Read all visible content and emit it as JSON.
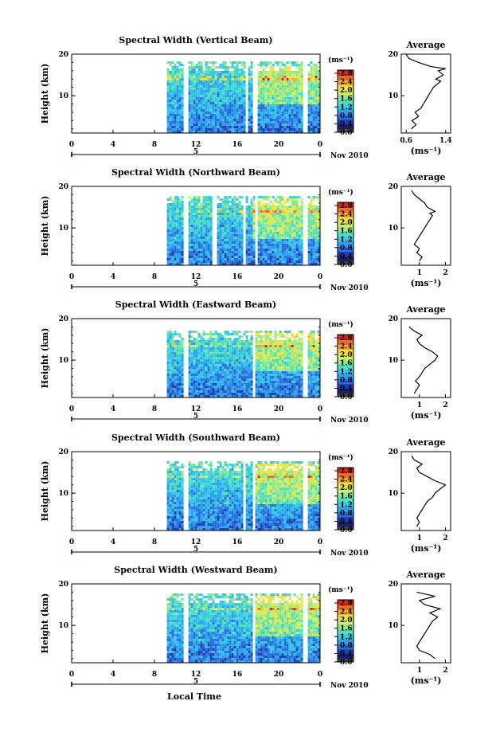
{
  "figure": {
    "xlabel": "Local Time",
    "date_label": "Nov 2010",
    "date_day": "5",
    "colorbar_unit": "(ms⁻¹)",
    "avg_title": "Average",
    "avg_xlabel": "(ms⁻¹)"
  },
  "colormap": [
    "#1a1f6b",
    "#1e3fb0",
    "#2a6ee0",
    "#2fa0f0",
    "#35c6e8",
    "#4fe0c0",
    "#8fe890",
    "#d0ee60",
    "#f6e040",
    "#f9a830",
    "#ef6a24",
    "#d8271c"
  ],
  "chart_data": [
    {
      "type": "heatmap",
      "title": "Spectral Width (Vertical Beam)",
      "xlabel": "",
      "ylabel": "Height (km)",
      "xlim": [
        0,
        24
      ],
      "ylim": [
        1,
        20
      ],
      "xticks": [
        "0",
        "4",
        "8",
        "12",
        "16",
        "20",
        "0"
      ],
      "yticks": [
        "10",
        "20"
      ],
      "colorbar": {
        "unit": "(ms⁻¹)",
        "ticks": [
          "2.8",
          "2.4",
          "2.0",
          "1.6",
          "1.2",
          "0.8",
          "0.4",
          "0.0"
        ]
      },
      "data_start_hour": 9.2,
      "data_gaps_hours": [
        [
          10.8,
          11.2
        ],
        [
          16.8,
          17.0
        ],
        [
          17.4,
          17.8
        ],
        [
          22.2,
          22.7
        ]
      ],
      "top_height_km": 18.5,
      "average_profile": {
        "xticks": [
          "0.6",
          "1.4"
        ],
        "xlim": [
          0.5,
          1.5
        ],
        "x": [
          0.7,
          0.8,
          0.72,
          0.85,
          0.78,
          0.9,
          0.95,
          1.0,
          1.05,
          1.1,
          1.15,
          1.2,
          1.25,
          1.3,
          1.2,
          1.35,
          1.25,
          1.4,
          1.1,
          0.85,
          0.65,
          0.6
        ],
        "y": [
          2,
          3,
          4,
          5,
          6,
          7,
          8,
          9,
          10,
          11,
          12,
          12.5,
          13,
          13.5,
          14,
          15,
          16,
          16.5,
          17,
          18,
          19,
          20
        ]
      }
    },
    {
      "type": "heatmap",
      "title": "Spectral Width (Northward Beam)",
      "xlabel": "",
      "ylabel": "Height (km)",
      "xlim": [
        0,
        24
      ],
      "ylim": [
        1,
        20
      ],
      "xticks": [
        "0",
        "4",
        "8",
        "12",
        "16",
        "20",
        "0"
      ],
      "yticks": [
        "10",
        "20"
      ],
      "colorbar": {
        "unit": "(ms⁻¹)",
        "ticks": [
          "2.8",
          "2.4",
          "2.0",
          "1.6",
          "1.2",
          "0.8",
          "0.4",
          "0.0"
        ]
      },
      "data_start_hour": 9.2,
      "data_gaps_hours": [
        [
          10.8,
          11.2
        ],
        [
          13.5,
          14.0
        ],
        [
          16.4,
          16.6
        ],
        [
          17.6,
          17.8
        ],
        [
          22.2,
          22.7
        ]
      ],
      "top_height_km": 18.0,
      "average_profile": {
        "xticks": [
          "1",
          "2"
        ],
        "xlim": [
          0.3,
          2.2
        ],
        "x": [
          1.0,
          1.1,
          0.9,
          1.0,
          0.8,
          0.9,
          1.0,
          1.1,
          1.2,
          1.3,
          1.4,
          1.5,
          1.4,
          1.6,
          1.3,
          1.2,
          1.0,
          0.8,
          0.7
        ],
        "y": [
          2,
          3,
          4,
          5,
          6,
          7,
          8,
          9,
          10,
          11,
          12,
          13,
          13.5,
          14,
          15,
          16,
          17,
          18,
          19
        ]
      }
    },
    {
      "type": "heatmap",
      "title": "Spectral Width (Eastward Beam)",
      "xlabel": "",
      "ylabel": "Height (km)",
      "xlim": [
        0,
        24
      ],
      "ylim": [
        1,
        20
      ],
      "xticks": [
        "0",
        "4",
        "8",
        "12",
        "16",
        "20",
        "0"
      ],
      "yticks": [
        "10",
        "20"
      ],
      "colorbar": {
        "unit": "(ms⁻¹)",
        "ticks": [
          "2.8",
          "2.4",
          "2.0",
          "1.6",
          "1.2",
          "0.8",
          "0.4",
          "0.0"
        ]
      },
      "data_start_hour": 9.2,
      "data_gaps_hours": [
        [
          10.8,
          11.2
        ],
        [
          16.6,
          16.8
        ],
        [
          17.4,
          17.6
        ],
        [
          22.2,
          22.7
        ]
      ],
      "top_height_km": 17.5,
      "average_profile": {
        "xticks": [
          "1",
          "2"
        ],
        "xlim": [
          0.3,
          2.2
        ],
        "x": [
          0.8,
          0.9,
          1.0,
          0.85,
          1.0,
          1.1,
          1.2,
          1.4,
          1.6,
          1.7,
          1.5,
          1.2,
          1.0,
          0.9,
          1.1,
          0.8,
          0.6
        ],
        "y": [
          2,
          3,
          4,
          5,
          6,
          7,
          8,
          9,
          10,
          11,
          12,
          13,
          14,
          15,
          16,
          17,
          18
        ]
      }
    },
    {
      "type": "heatmap",
      "title": "Spectral Width (Southward Beam)",
      "xlabel": "",
      "ylabel": "Height (km)",
      "xlim": [
        0,
        24
      ],
      "ylim": [
        1,
        20
      ],
      "xticks": [
        "0",
        "4",
        "8",
        "12",
        "16",
        "20",
        "0"
      ],
      "yticks": [
        "10",
        "20"
      ],
      "colorbar": {
        "unit": "(ms⁻¹)",
        "ticks": [
          "2.8",
          "2.4",
          "2.0",
          "1.6",
          "1.2",
          "0.8",
          "0.4",
          "0.0"
        ]
      },
      "data_start_hour": 9.2,
      "data_gaps_hours": [
        [
          10.8,
          11.2
        ],
        [
          16.4,
          16.6
        ],
        [
          17.4,
          17.6
        ],
        [
          22.2,
          22.7
        ]
      ],
      "top_height_km": 18.0,
      "average_profile": {
        "xticks": [
          "1",
          "2"
        ],
        "xlim": [
          0.3,
          2.2
        ],
        "x": [
          0.9,
          1.0,
          0.9,
          1.0,
          1.1,
          1.2,
          1.3,
          1.5,
          1.6,
          1.8,
          2.0,
          1.6,
          1.3,
          1.0,
          0.9,
          1.1,
          0.8,
          0.7
        ],
        "y": [
          2,
          3,
          4,
          5,
          6,
          7,
          8,
          9,
          10,
          11,
          12,
          13,
          14,
          15,
          16,
          17,
          18,
          19
        ]
      }
    },
    {
      "type": "heatmap",
      "title": "Spectral Width (Westward Beam)",
      "xlabel": "Local Time",
      "ylabel": "Height (km)",
      "xlim": [
        0,
        24
      ],
      "ylim": [
        1,
        20
      ],
      "xticks": [
        "0",
        "4",
        "8",
        "12",
        "16",
        "20",
        "0"
      ],
      "yticks": [
        "10",
        "20"
      ],
      "colorbar": {
        "unit": "(ms⁻¹)",
        "ticks": [
          "2.8",
          "2.4",
          "2.0",
          "1.6",
          "1.2",
          "0.8",
          "0.4",
          "0.0"
        ]
      },
      "data_start_hour": 9.2,
      "data_gaps_hours": [
        [
          10.8,
          11.2
        ],
        [
          16.6,
          16.8
        ],
        [
          17.4,
          17.6
        ],
        [
          22.2,
          22.7
        ]
      ],
      "top_height_km": 18.0,
      "average_profile": {
        "xticks": [
          "1",
          "2"
        ],
        "xlim": [
          0.3,
          2.2
        ],
        "x": [
          1.6,
          1.4,
          1.0,
          0.9,
          1.0,
          1.1,
          1.2,
          1.3,
          1.4,
          1.5,
          1.7,
          1.4,
          1.8,
          1.2,
          1.0,
          1.6,
          0.9
        ],
        "y": [
          2,
          3,
          4,
          5,
          6,
          7,
          8,
          9,
          10,
          11,
          12,
          13,
          14,
          15,
          16,
          17,
          18
        ]
      }
    }
  ]
}
